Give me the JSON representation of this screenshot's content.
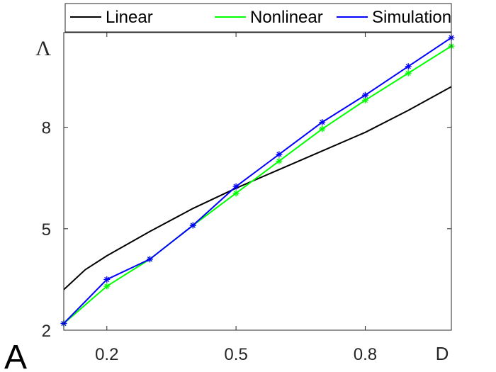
{
  "panel_label": "A",
  "chart_data": {
    "type": "line",
    "xlabel": "D",
    "ylabel": "Λ",
    "xlim": [
      0.1,
      1.0
    ],
    "ylim": [
      2,
      10.8
    ],
    "xticks": [
      0.2,
      0.5,
      0.8
    ],
    "xtick_labels": [
      "0.2",
      "0.5",
      "0.8"
    ],
    "yticks": [
      2,
      5,
      8
    ],
    "ytick_labels": [
      "2",
      "5",
      "8"
    ],
    "grid": false,
    "legend": {
      "position": "top",
      "orientation": "horizontal",
      "entries": [
        "Linear",
        "Nonlinear",
        "Simulation"
      ]
    },
    "series": [
      {
        "name": "Linear",
        "color": "#000000",
        "marker": "none",
        "x": [
          0.1,
          0.15,
          0.2,
          0.3,
          0.4,
          0.5,
          0.6,
          0.7,
          0.8,
          0.9,
          1.0
        ],
        "y": [
          3.2,
          3.79,
          4.2,
          4.92,
          5.6,
          6.2,
          6.75,
          7.3,
          7.85,
          8.5,
          9.2
        ]
      },
      {
        "name": "Nonlinear",
        "color": "#00ff00",
        "marker": "asterisk",
        "x": [
          0.1,
          0.2,
          0.3,
          0.4,
          0.5,
          0.6,
          0.7,
          0.8,
          0.9,
          1.0
        ],
        "y": [
          2.2,
          3.3,
          4.1,
          5.1,
          6.05,
          7.0,
          7.95,
          8.8,
          9.6,
          10.4
        ]
      },
      {
        "name": "Simulation",
        "color": "#0000ff",
        "marker": "asterisk",
        "x": [
          0.1,
          0.2,
          0.3,
          0.4,
          0.5,
          0.6,
          0.7,
          0.8,
          0.9,
          1.0
        ],
        "y": [
          2.2,
          3.5,
          4.1,
          5.1,
          6.25,
          7.2,
          8.15,
          8.95,
          9.8,
          10.65
        ]
      }
    ]
  }
}
